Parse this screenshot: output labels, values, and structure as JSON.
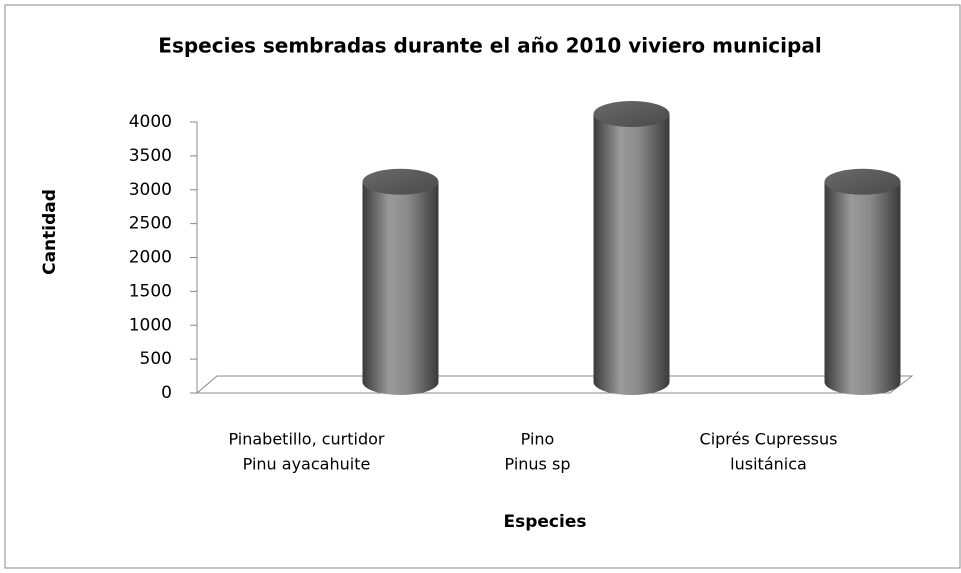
{
  "chart_data": {
    "type": "bar",
    "style": "3d-cylinder",
    "title": "Especies sembradas durante el año 2010 viviero municipal",
    "x_label": "Especies",
    "y_label": "Cantidad",
    "categories": [
      [
        "Pinabetillo, curtidor",
        "Pinu ayacahuite"
      ],
      [
        "Pino",
        "Pinus sp"
      ],
      [
        "Ciprés   Cupressus",
        "lusitánica"
      ]
    ],
    "values": [
      3000,
      4000,
      3000
    ],
    "color": "#7f7f7f",
    "ylim": [
      0,
      4000
    ],
    "yticks": [
      0,
      500,
      1000,
      1500,
      2000,
      2500,
      3000,
      3500,
      4000
    ],
    "grid": false
  }
}
